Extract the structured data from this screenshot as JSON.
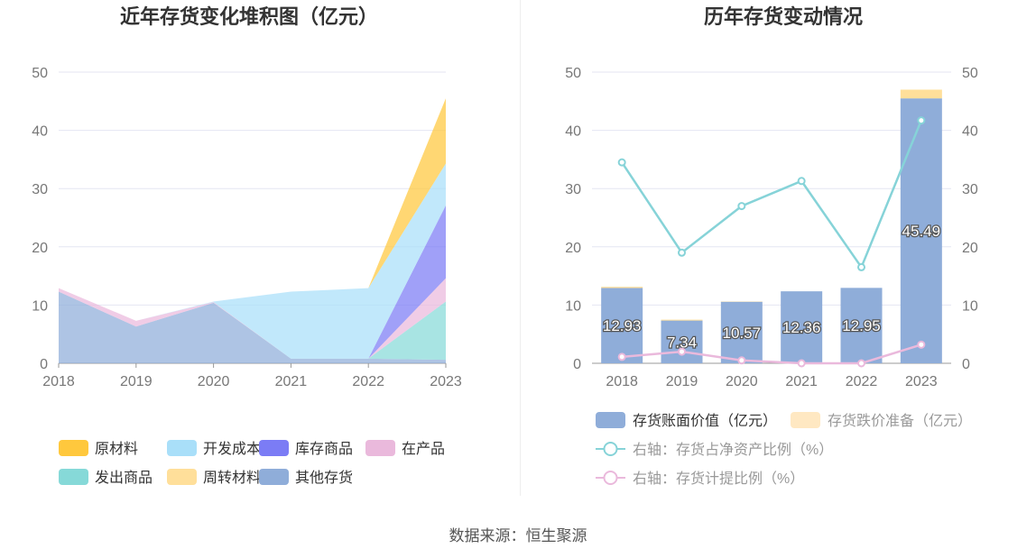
{
  "source_text": "数据来源：恒生聚源",
  "colors": {
    "原材料": "#ffc83d",
    "开发成本": "#a9dff9",
    "库存商品": "#7b7cf5",
    "在产品": "#eab9dc",
    "发出商品": "#86d9d8",
    "周转材料": "#ffdf9a",
    "其他存货": "#8fadd9",
    "book": "#8fadd9",
    "reserve": "#ffe8c2",
    "ratio_net": "#86d3d8",
    "ratio_prov": "#eab9dc"
  },
  "chart_data": [
    {
      "type": "area",
      "title": "近年存货变化堆积图（亿元）",
      "x": [
        "2018",
        "2019",
        "2020",
        "2021",
        "2022",
        "2023"
      ],
      "ylim": [
        0,
        50
      ],
      "yticks": [
        "0",
        "10",
        "20",
        "30",
        "40",
        "50"
      ],
      "grid": true,
      "legend_position": "bottom",
      "series": [
        {
          "name": "其他存货",
          "values": [
            12.3,
            6.3,
            10.4,
            0.8,
            0.8,
            0.6
          ]
        },
        {
          "name": "周转材料",
          "values": [
            0,
            0,
            0,
            0,
            0,
            0
          ]
        },
        {
          "name": "发出商品",
          "values": [
            0,
            0,
            0,
            0,
            0,
            10.0
          ]
        },
        {
          "name": "在产品",
          "values": [
            0.6,
            1.0,
            0.1,
            0,
            0,
            4.0
          ]
        },
        {
          "name": "库存商品",
          "values": [
            0,
            0,
            0,
            0,
            0,
            12.5
          ]
        },
        {
          "name": "开发成本",
          "values": [
            0,
            0,
            0.1,
            11.5,
            12.1,
            7.2
          ]
        },
        {
          "name": "原材料",
          "values": [
            0,
            0,
            0,
            0,
            0,
            11.2
          ]
        }
      ],
      "legend_order": [
        "原材料",
        "开发成本",
        "库存商品",
        "在产品",
        "发出商品",
        "周转材料",
        "其他存货"
      ]
    },
    {
      "type": "bar",
      "title": "历年存货变动情况",
      "categories": [
        "2018",
        "2019",
        "2020",
        "2021",
        "2022",
        "2023"
      ],
      "ylim": [
        0,
        50
      ],
      "yticks": [
        "0",
        "10",
        "20",
        "30",
        "40",
        "50"
      ],
      "y2lim": [
        0,
        50
      ],
      "y2ticks": [
        "0",
        "10",
        "20",
        "30",
        "40",
        "50"
      ],
      "grid": true,
      "legend_position": "bottom",
      "series": [
        {
          "name": "存货账面价值（亿元）",
          "type": "bar",
          "values": [
            12.93,
            7.34,
            10.57,
            12.36,
            12.95,
            45.49
          ],
          "labels": [
            "12.93",
            "7.34",
            "10.57",
            "12.36",
            "12.95",
            "45.49"
          ]
        },
        {
          "name": "存货跌价准备（亿元）",
          "type": "bar-stacked",
          "values": [
            0.2,
            0.15,
            0.05,
            0.0,
            0.0,
            1.5
          ]
        },
        {
          "name": "右轴：存货占净资产比例（%）",
          "type": "line",
          "axis": "right",
          "values": [
            34.5,
            19.0,
            27.0,
            31.3,
            16.5,
            41.7
          ]
        },
        {
          "name": "右轴：存货计提比例（%）",
          "type": "line",
          "axis": "right",
          "values": [
            1.1,
            2.0,
            0.5,
            0.0,
            0.0,
            3.2
          ]
        }
      ]
    }
  ]
}
